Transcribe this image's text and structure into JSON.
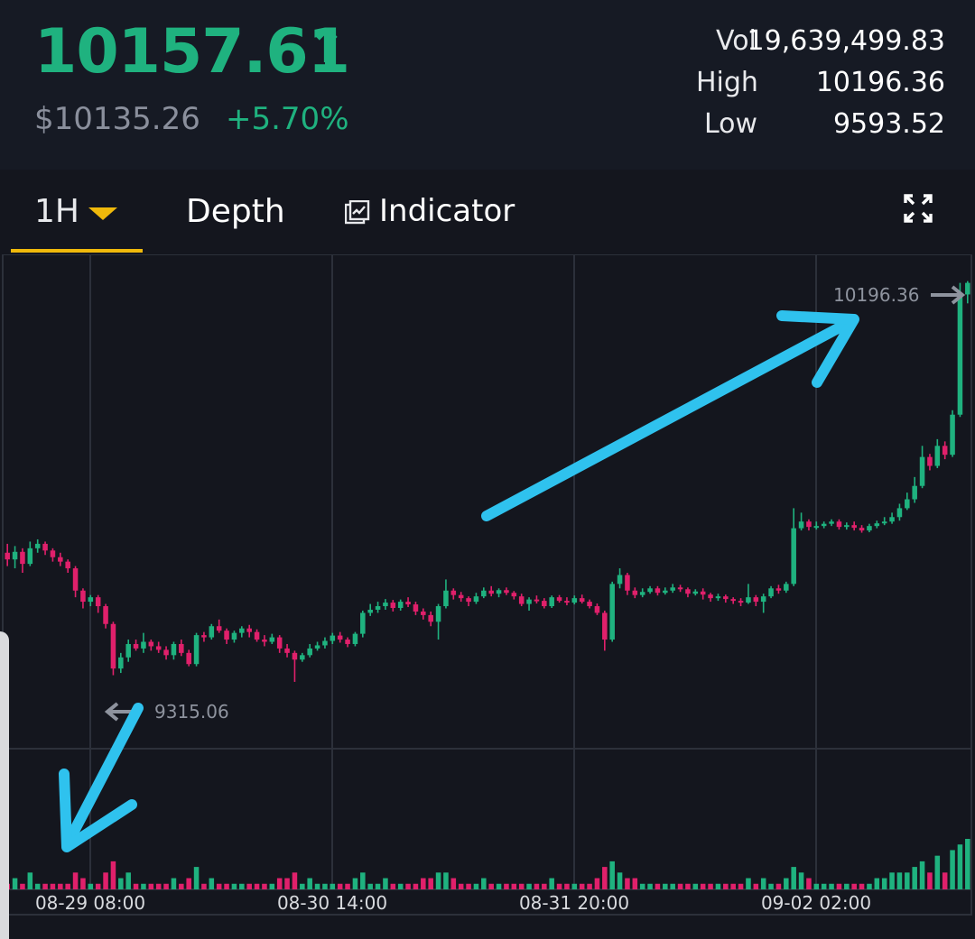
{
  "colors": {
    "up": "#1fb27f",
    "down": "#e0206b",
    "accent": "#f0b90b",
    "annotation": "#2fc2ee",
    "grid": "#2c303a",
    "axis_text": "#d8dade"
  },
  "ticker": {
    "last_price": "10157.61",
    "direction_icon": "arrow-up-icon",
    "direction_glyph": "↑",
    "usd_price": "$10135.26",
    "change_pct": "+5.70%"
  },
  "stats": {
    "vol_label": "Vol",
    "vol_value": "19,639,499.83",
    "high_label": "High",
    "high_value": "10196.36",
    "low_label": "Low",
    "low_value": "9593.52"
  },
  "tabs": {
    "interval_label": "1H",
    "interval_caret_icon": "caret-down-icon",
    "depth_label": "Depth",
    "indicator_icon": "indicator-chart-icon",
    "indicator_label": "Indicator",
    "fullscreen_icon": "fullscreen-expand-icon"
  },
  "chart_data": {
    "type": "candlestick",
    "interval": "1H",
    "x_tick_labels": [
      "08-29 08:00",
      "08-30 14:00",
      "08-31 20:00",
      "09-02 02:00"
    ],
    "max_marker": {
      "value": 10196.36,
      "label": "10196.36"
    },
    "min_marker": {
      "value": 9315.06,
      "label": "9315.06"
    },
    "y_range": [
      9150,
      10260
    ],
    "grid": true,
    "annotations": [
      "down-left arrow pointing to the low marker",
      "up-right arrow pointing to the high marker"
    ],
    "candles": [
      [
        9590,
        9575,
        9610,
        9560,
        1
      ],
      [
        9575,
        9592,
        9605,
        9555,
        2
      ],
      [
        9592,
        9565,
        9600,
        9545,
        1
      ],
      [
        9565,
        9600,
        9615,
        9560,
        3
      ],
      [
        9600,
        9610,
        9620,
        9590,
        1
      ],
      [
        9610,
        9595,
        9615,
        9585,
        1
      ],
      [
        9595,
        9580,
        9600,
        9570,
        1
      ],
      [
        9580,
        9570,
        9590,
        9560,
        1
      ],
      [
        9570,
        9555,
        9575,
        9545,
        1
      ],
      [
        9555,
        9505,
        9560,
        9490,
        3
      ],
      [
        9505,
        9480,
        9510,
        9465,
        2
      ],
      [
        9480,
        9490,
        9495,
        9470,
        1
      ],
      [
        9490,
        9470,
        9495,
        9455,
        1
      ],
      [
        9470,
        9430,
        9475,
        9420,
        3
      ],
      [
        9430,
        9330,
        9435,
        9315,
        5
      ],
      [
        9330,
        9355,
        9365,
        9320,
        2
      ],
      [
        9355,
        9385,
        9395,
        9345,
        3
      ],
      [
        9385,
        9375,
        9395,
        9370,
        1
      ],
      [
        9375,
        9390,
        9410,
        9365,
        1
      ],
      [
        9390,
        9380,
        9395,
        9370,
        1
      ],
      [
        9380,
        9372,
        9390,
        9365,
        1
      ],
      [
        9372,
        9360,
        9380,
        9350,
        1
      ],
      [
        9360,
        9385,
        9390,
        9350,
        2
      ],
      [
        9385,
        9365,
        9395,
        9358,
        1
      ],
      [
        9365,
        9340,
        9372,
        9335,
        2
      ],
      [
        9340,
        9405,
        9410,
        9335,
        4
      ],
      [
        9405,
        9400,
        9412,
        9390,
        1
      ],
      [
        9400,
        9425,
        9430,
        9395,
        2
      ],
      [
        9425,
        9415,
        9440,
        9410,
        1
      ],
      [
        9415,
        9395,
        9420,
        9385,
        1
      ],
      [
        9395,
        9410,
        9415,
        9388,
        1
      ],
      [
        9410,
        9420,
        9425,
        9400,
        1
      ],
      [
        9420,
        9412,
        9428,
        9400,
        1
      ],
      [
        9412,
        9395,
        9418,
        9390,
        1
      ],
      [
        9395,
        9390,
        9405,
        9380,
        1
      ],
      [
        9390,
        9400,
        9408,
        9385,
        1
      ],
      [
        9400,
        9375,
        9405,
        9365,
        2
      ],
      [
        9375,
        9365,
        9385,
        9355,
        2
      ],
      [
        9365,
        9350,
        9370,
        9300,
        3
      ],
      [
        9350,
        9360,
        9365,
        9345,
        1
      ],
      [
        9360,
        9375,
        9385,
        9355,
        2
      ],
      [
        9375,
        9382,
        9390,
        9370,
        1
      ],
      [
        9382,
        9392,
        9400,
        9375,
        1
      ],
      [
        9392,
        9404,
        9410,
        9385,
        1
      ],
      [
        9404,
        9395,
        9412,
        9388,
        1
      ],
      [
        9395,
        9385,
        9400,
        9378,
        1
      ],
      [
        9385,
        9408,
        9412,
        9380,
        2
      ],
      [
        9408,
        9455,
        9460,
        9400,
        3
      ],
      [
        9455,
        9462,
        9475,
        9448,
        1
      ],
      [
        9462,
        9470,
        9480,
        9455,
        1
      ],
      [
        9470,
        9478,
        9486,
        9462,
        2
      ],
      [
        9478,
        9466,
        9484,
        9458,
        1
      ],
      [
        9466,
        9480,
        9485,
        9460,
        1
      ],
      [
        9480,
        9474,
        9490,
        9468,
        1
      ],
      [
        9474,
        9458,
        9480,
        9450,
        1
      ],
      [
        9458,
        9450,
        9465,
        9440,
        2
      ],
      [
        9450,
        9435,
        9458,
        9425,
        2
      ],
      [
        9435,
        9470,
        9475,
        9395,
        3
      ],
      [
        9470,
        9505,
        9530,
        9465,
        3
      ],
      [
        9505,
        9495,
        9510,
        9485,
        2
      ],
      [
        9495,
        9488,
        9502,
        9480,
        1
      ],
      [
        9488,
        9480,
        9492,
        9470,
        1
      ],
      [
        9480,
        9492,
        9500,
        9475,
        1
      ],
      [
        9492,
        9505,
        9512,
        9488,
        2
      ],
      [
        9505,
        9498,
        9515,
        9492,
        1
      ],
      [
        9498,
        9506,
        9510,
        9490,
        1
      ],
      [
        9506,
        9500,
        9512,
        9495,
        1
      ],
      [
        9500,
        9492,
        9504,
        9485,
        1
      ],
      [
        9492,
        9475,
        9498,
        9470,
        1
      ],
      [
        9475,
        9485,
        9490,
        9460,
        1
      ],
      [
        9485,
        9482,
        9494,
        9476,
        1
      ],
      [
        9482,
        9470,
        9488,
        9465,
        1
      ],
      [
        9470,
        9490,
        9494,
        9466,
        2
      ],
      [
        9490,
        9482,
        9495,
        9478,
        1
      ],
      [
        9482,
        9478,
        9490,
        9472,
        1
      ],
      [
        9478,
        9488,
        9494,
        9474,
        1
      ],
      [
        9488,
        9480,
        9496,
        9476,
        1
      ],
      [
        9480,
        9470,
        9485,
        9465,
        1
      ],
      [
        9470,
        9455,
        9476,
        9450,
        2
      ],
      [
        9455,
        9395,
        9460,
        9370,
        4
      ],
      [
        9395,
        9520,
        9525,
        9390,
        5
      ],
      [
        9520,
        9540,
        9555,
        9510,
        3
      ],
      [
        9540,
        9505,
        9545,
        9495,
        2
      ],
      [
        9505,
        9495,
        9512,
        9488,
        2
      ],
      [
        9495,
        9502,
        9510,
        9490,
        1
      ],
      [
        9502,
        9510,
        9515,
        9498,
        1
      ],
      [
        9510,
        9500,
        9515,
        9494,
        1
      ],
      [
        9500,
        9505,
        9512,
        9496,
        1
      ],
      [
        9505,
        9512,
        9520,
        9500,
        1
      ],
      [
        9512,
        9508,
        9518,
        9502,
        1
      ],
      [
        9508,
        9498,
        9512,
        9490,
        1
      ],
      [
        9498,
        9503,
        9508,
        9494,
        1
      ],
      [
        9503,
        9496,
        9510,
        9485,
        1
      ],
      [
        9496,
        9488,
        9500,
        9480,
        1
      ],
      [
        9488,
        9492,
        9498,
        9482,
        1
      ],
      [
        9492,
        9486,
        9496,
        9478,
        1
      ],
      [
        9486,
        9482,
        9490,
        9475,
        1
      ],
      [
        9482,
        9478,
        9488,
        9470,
        1
      ],
      [
        9478,
        9490,
        9520,
        9475,
        2
      ],
      [
        9490,
        9480,
        9495,
        9470,
        1
      ],
      [
        9480,
        9492,
        9498,
        9455,
        2
      ],
      [
        9492,
        9510,
        9515,
        9488,
        1
      ],
      [
        9510,
        9505,
        9518,
        9498,
        1
      ],
      [
        9505,
        9520,
        9525,
        9500,
        2
      ],
      [
        9520,
        9645,
        9690,
        9515,
        4
      ],
      [
        9645,
        9660,
        9680,
        9640,
        3
      ],
      [
        9660,
        9648,
        9665,
        9640,
        2
      ],
      [
        9648,
        9650,
        9660,
        9642,
        1
      ],
      [
        9650,
        9655,
        9660,
        9645,
        1
      ],
      [
        9655,
        9660,
        9665,
        9650,
        1
      ],
      [
        9660,
        9648,
        9665,
        9642,
        1
      ],
      [
        9648,
        9652,
        9658,
        9642,
        1
      ],
      [
        9652,
        9646,
        9660,
        9640,
        1
      ],
      [
        9646,
        9640,
        9652,
        9635,
        1
      ],
      [
        9640,
        9650,
        9655,
        9636,
        1
      ],
      [
        9650,
        9656,
        9662,
        9645,
        2
      ],
      [
        9656,
        9660,
        9670,
        9652,
        2
      ],
      [
        9660,
        9670,
        9680,
        9655,
        3
      ],
      [
        9670,
        9690,
        9700,
        9662,
        3
      ],
      [
        9690,
        9710,
        9725,
        9686,
        3
      ],
      [
        9710,
        9740,
        9760,
        9702,
        4
      ],
      [
        9740,
        9805,
        9830,
        9735,
        5
      ],
      [
        9805,
        9785,
        9812,
        9775,
        3
      ],
      [
        9785,
        9830,
        9845,
        9780,
        6
      ],
      [
        9830,
        9810,
        9840,
        9800,
        3
      ],
      [
        9810,
        9900,
        9910,
        9805,
        7
      ],
      [
        9900,
        10170,
        10196,
        9895,
        8
      ],
      [
        10170,
        10196,
        10200,
        10150,
        9
      ]
    ],
    "y_labels": []
  }
}
